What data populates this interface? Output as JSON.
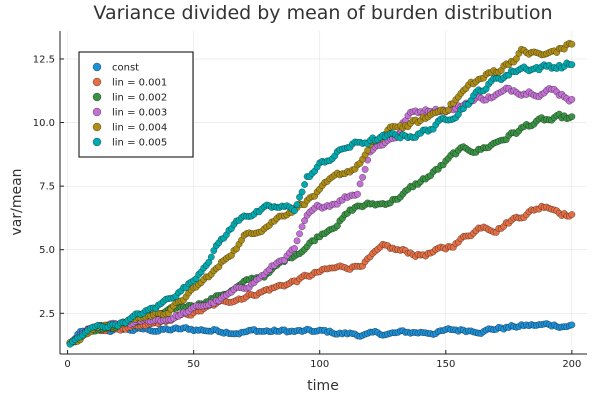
{
  "chart_data": {
    "type": "scatter",
    "title": "Variance divided by mean of burden distribution",
    "xlabel": "time",
    "ylabel": "var/mean",
    "xlim": [
      -3,
      206
    ],
    "ylim": [
      0.9,
      13.6
    ],
    "xticks": [
      0,
      50,
      100,
      150,
      200
    ],
    "xtick_labels": [
      "0",
      "50",
      "100",
      "150",
      "200"
    ],
    "yticks": [
      2.5,
      5.0,
      7.5,
      10.0,
      12.5
    ],
    "ytick_labels": [
      "2.5",
      "5.0",
      "7.5",
      "10.0",
      "12.5"
    ],
    "grid": true,
    "legend_position": "top-left",
    "series": [
      {
        "name": "const",
        "color": "#1f8fd6",
        "anchors": [
          [
            1,
            1.3
          ],
          [
            5,
            1.7
          ],
          [
            20,
            1.85
          ],
          [
            50,
            1.85
          ],
          [
            80,
            1.8
          ],
          [
            100,
            1.75
          ],
          [
            120,
            1.65
          ],
          [
            140,
            1.75
          ],
          [
            160,
            1.85
          ],
          [
            180,
            2.0
          ],
          [
            200,
            2.05
          ]
        ]
      },
      {
        "name": "lin = 0.001",
        "color": "#e26f46",
        "anchors": [
          [
            1,
            1.3
          ],
          [
            8,
            1.8
          ],
          [
            20,
            1.9
          ],
          [
            30,
            1.9
          ],
          [
            50,
            2.5
          ],
          [
            70,
            3.2
          ],
          [
            85,
            3.6
          ],
          [
            100,
            4.1
          ],
          [
            115,
            4.4
          ],
          [
            125,
            5.0
          ],
          [
            140,
            4.8
          ],
          [
            150,
            5.0
          ],
          [
            165,
            6.0
          ],
          [
            170,
            5.9
          ],
          [
            180,
            6.4
          ],
          [
            190,
            6.8
          ],
          [
            200,
            6.4
          ]
        ]
      },
      {
        "name": "lin = 0.002",
        "color": "#3a9244",
        "anchors": [
          [
            1,
            1.3
          ],
          [
            8,
            1.8
          ],
          [
            20,
            2.0
          ],
          [
            40,
            2.5
          ],
          [
            60,
            3.2
          ],
          [
            80,
            4.1
          ],
          [
            95,
            5.2
          ],
          [
            105,
            6.0
          ],
          [
            115,
            6.7
          ],
          [
            125,
            6.8
          ],
          [
            135,
            7.3
          ],
          [
            145,
            8.0
          ],
          [
            155,
            8.8
          ],
          [
            165,
            9.0
          ],
          [
            175,
            9.5
          ],
          [
            185,
            10.0
          ],
          [
            200,
            10.1
          ]
        ]
      },
      {
        "name": "lin = 0.003",
        "color": "#c271d2",
        "anchors": [
          [
            1,
            1.3
          ],
          [
            10,
            1.9
          ],
          [
            20,
            2.0
          ],
          [
            40,
            2.3
          ],
          [
            60,
            3.0
          ],
          [
            70,
            3.5
          ],
          [
            80,
            4.2
          ],
          [
            90,
            5.0
          ],
          [
            95,
            6.2
          ],
          [
            100,
            6.6
          ],
          [
            110,
            7.1
          ],
          [
            115,
            7.3
          ],
          [
            120,
            9.0
          ],
          [
            130,
            9.5
          ],
          [
            135,
            10.3
          ],
          [
            145,
            10.6
          ],
          [
            155,
            10.6
          ],
          [
            160,
            10.9
          ],
          [
            170,
            11.1
          ],
          [
            180,
            11.3
          ],
          [
            190,
            11.4
          ],
          [
            200,
            11.0
          ]
        ]
      },
      {
        "name": "lin = 0.004",
        "color": "#ac8d18",
        "anchors": [
          [
            1,
            1.3
          ],
          [
            10,
            1.9
          ],
          [
            20,
            2.1
          ],
          [
            40,
            2.6
          ],
          [
            50,
            3.4
          ],
          [
            60,
            4.3
          ],
          [
            70,
            5.5
          ],
          [
            80,
            6.1
          ],
          [
            90,
            6.7
          ],
          [
            100,
            7.3
          ],
          [
            115,
            8.3
          ],
          [
            120,
            9.0
          ],
          [
            130,
            9.8
          ],
          [
            140,
            10.0
          ],
          [
            150,
            10.6
          ],
          [
            160,
            11.5
          ],
          [
            170,
            12.0
          ],
          [
            180,
            12.8
          ],
          [
            190,
            12.6
          ],
          [
            200,
            13.1
          ]
        ]
      },
      {
        "name": "lin = 0.005",
        "color": "#00a9ad",
        "anchors": [
          [
            1,
            1.3
          ],
          [
            10,
            1.9
          ],
          [
            20,
            2.1
          ],
          [
            35,
            2.7
          ],
          [
            50,
            3.8
          ],
          [
            60,
            5.3
          ],
          [
            70,
            6.4
          ],
          [
            80,
            6.6
          ],
          [
            90,
            6.6
          ],
          [
            95,
            7.8
          ],
          [
            100,
            8.3
          ],
          [
            110,
            9.0
          ],
          [
            120,
            9.3
          ],
          [
            130,
            9.4
          ],
          [
            140,
            9.6
          ],
          [
            150,
            10.1
          ],
          [
            160,
            11.0
          ],
          [
            170,
            11.7
          ],
          [
            180,
            12.2
          ],
          [
            190,
            12.2
          ],
          [
            200,
            12.3
          ]
        ]
      }
    ]
  }
}
